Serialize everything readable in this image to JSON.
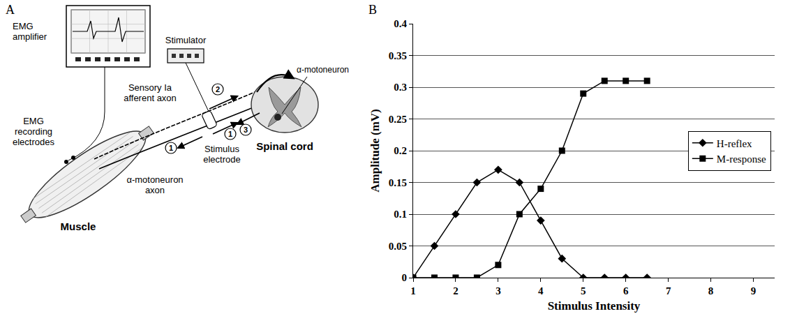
{
  "diagram": {
    "panel_label": "A",
    "labels": {
      "emg_amplifier": "EMG amplifier",
      "stimulator": "Stimulator",
      "sensory_axon": "Sensory Ia afferent axon",
      "emg_electrodes": "EMG recording electrodes",
      "motor_axon": "α-motoneuron axon",
      "muscle": "Muscle",
      "stimulus_electrode": "Stimulus electrode",
      "spinal_cord": "Spinal cord",
      "motoneuron": "α-motoneuron"
    },
    "pathway_steps": [
      1,
      1,
      2,
      3
    ]
  },
  "chart_data": {
    "type": "line",
    "panel_label": "B",
    "x_label": "Stimulus Intensity",
    "y_label": "Amplitude (mV)",
    "x": [
      1,
      1.5,
      2,
      2.5,
      3,
      3.5,
      4,
      4.5,
      5,
      5.5,
      6,
      6.5
    ],
    "series": [
      {
        "name": "H-reflex",
        "color": "#000000",
        "marker": "diamond",
        "line_style": "solid",
        "values": [
          0,
          0.05,
          0.1,
          0.15,
          0.17,
          0.15,
          0.09,
          0.03,
          0,
          0,
          0,
          0
        ]
      },
      {
        "name": "M-response",
        "color": "#000000",
        "marker": "square",
        "line_style": "solid",
        "values": [
          0,
          0,
          0,
          0,
          0.02,
          0.1,
          0.14,
          0.2,
          0.29,
          0.31,
          0.31,
          0.31
        ]
      }
    ],
    "xlim": [
      1,
      9.5
    ],
    "xticks": [
      1,
      2,
      3,
      4,
      5,
      6,
      7,
      8,
      9
    ],
    "ylim": [
      0,
      0.4
    ],
    "yticks": [
      0,
      0.05,
      0.1,
      0.15,
      0.2,
      0.25,
      0.3,
      0.35,
      0.4
    ],
    "grid": true,
    "legend": "right"
  }
}
